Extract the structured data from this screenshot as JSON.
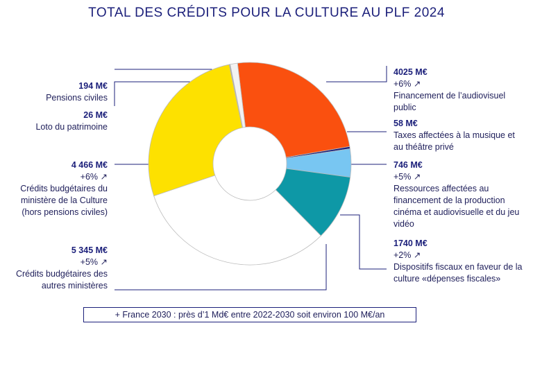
{
  "chart_data": {
    "type": "donut",
    "title": "TOTAL DES CRÉDITS POUR LA CULTURE AU PLF 2024",
    "categories": [
      "Financement de l’audiovisuel public",
      "Taxes affectées à la musique et au théâtre privé",
      "Ressources affectées au financement de la production cinéma et audiovisuelle et du jeu vidéo",
      "Dispositifs fiscaux en faveur de la culture «dépenses fiscales»",
      "Crédits budgétaires des autres ministères",
      "Crédits budgétaires du ministère de la Culture (hors pensions civiles)",
      "Loto du patrimoine",
      "Pensions civiles"
    ],
    "values": [
      4025,
      58,
      746,
      1740,
      5345,
      4466,
      26,
      194
    ],
    "value_labels": [
      "4025 M€",
      "58 M€",
      "746 M€",
      "1740 M€",
      "5 345 M€",
      "4 466 M€",
      "26 M€",
      "194 M€"
    ],
    "growth": [
      "+6% ↗",
      null,
      "+5% ↗",
      "+2% ↗",
      "+5% ↗",
      "+6% ↗",
      null,
      null
    ],
    "colors": [
      "#fa500f",
      "#1b1f7a",
      "#78c6f2",
      "#0e98a6",
      "#ffffff",
      "#fde100",
      "#9a9a9a",
      "#f2f2f2"
    ],
    "footnote": "+ France 2030 : près d’1 Md€ entre 2022-2030 soit environ 100 M€/an"
  }
}
